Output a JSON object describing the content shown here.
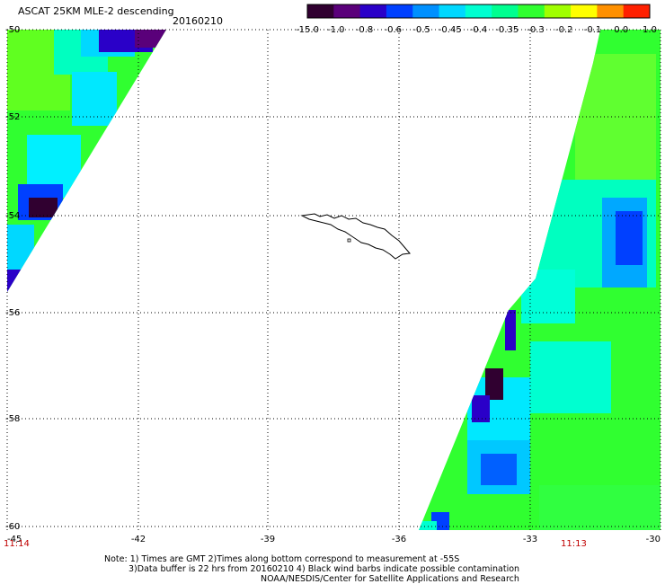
{
  "title": "ASCAT 25KM MLE-2 descending",
  "date": "20160210",
  "colorbar": {
    "labels": [
      "-15.0",
      "-1.0",
      "-0.8",
      "-0.6",
      "-0.5",
      "-0.45",
      "-0.4",
      "-0.35",
      "-0.3",
      "-0.2",
      "-0.1",
      "0.0",
      "1.0"
    ],
    "colors": [
      "#300030",
      "#5a007a",
      "#2a00c8",
      "#0040ff",
      "#0090ff",
      "#00d8ff",
      "#00ffd0",
      "#00ff90",
      "#30ff30",
      "#a0ff00",
      "#ffff00",
      "#ff9000",
      "#ff2000"
    ]
  },
  "axes": {
    "lat_labels": [
      "-50",
      "-52",
      "-54",
      "-56",
      "-58",
      "-60"
    ],
    "lon_labels": [
      "-45",
      "-42",
      "-39",
      "-36",
      "-33",
      "-30"
    ]
  },
  "times": {
    "left": "11:14",
    "right": "11:13"
  },
  "notes": [
    "Note: 1) Times are GMT 2)Times along bottom correspond to measurement at -55S",
    "3)Data buffer is 22 hrs from 20160210 4) Black wind barbs indicate possible contamination",
    "NOAA/NESDIS/Center for Satellite Applications and Research"
  ]
}
